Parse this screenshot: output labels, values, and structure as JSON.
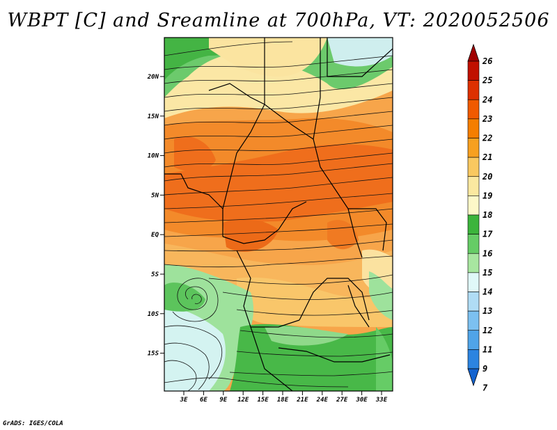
{
  "title": "WBPT [C] and Sreamline at 700hPa, VT: 2020052506",
  "credit": "GrADS: IGES/COLA",
  "map": {
    "lat_ticks": [
      "20N",
      "15N",
      "10N",
      "5N",
      "EQ",
      "5S",
      "10S",
      "15S"
    ],
    "lon_ticks": [
      "3E",
      "6E",
      "9E",
      "12E",
      "15E",
      "18E",
      "21E",
      "24E",
      "27E",
      "30E",
      "33E"
    ]
  },
  "colorbar": {
    "labels": [
      "26",
      "25",
      "24",
      "23",
      "22",
      "21",
      "20",
      "19",
      "18",
      "17",
      "16",
      "15",
      "14",
      "13",
      "12",
      "11",
      "9",
      "7"
    ],
    "colors": [
      "#a00000",
      "#c01000",
      "#dd3000",
      "#f05a00",
      "#f57e00",
      "#f7a020",
      "#f9c860",
      "#fbe8a0",
      "#fdf8c8",
      "#3cb43c",
      "#66cc66",
      "#a8e6a0",
      "#e0f8f8",
      "#b0dcf5",
      "#7cc0f0",
      "#50a4e8",
      "#2c84e0",
      "#1464d0"
    ]
  }
}
